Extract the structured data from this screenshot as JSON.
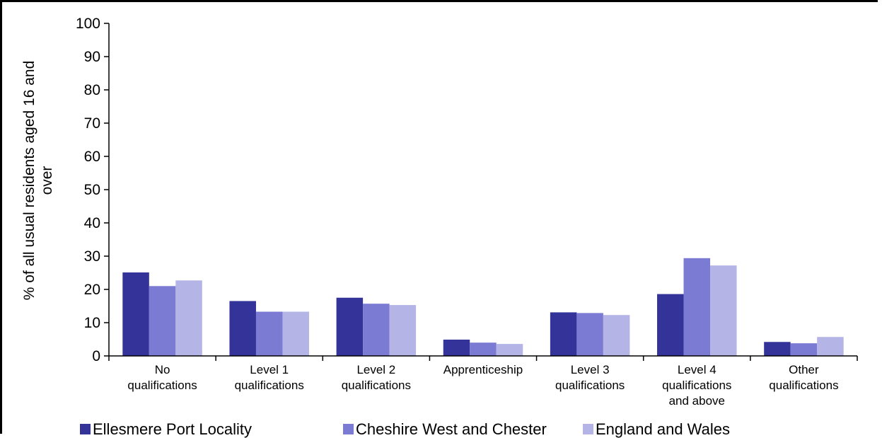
{
  "chart_data": {
    "type": "bar",
    "ylabel": "% of all usual residents aged 16 and over",
    "ylabel_lines": [
      "% of all usual residents aged 16 and",
      "over"
    ],
    "ylim": [
      0,
      100
    ],
    "yticks": [
      0,
      10,
      20,
      30,
      40,
      50,
      60,
      70,
      80,
      90,
      100
    ],
    "grid": false,
    "legend_position": "bottom",
    "categories": [
      [
        "No",
        "qualifications"
      ],
      [
        "Level 1",
        "qualifications"
      ],
      [
        "Level 2",
        "qualifications"
      ],
      [
        "Apprenticeship"
      ],
      [
        "Level 3",
        "qualifications"
      ],
      [
        "Level 4",
        "qualifications",
        "and above"
      ],
      [
        "Other",
        "qualifications"
      ]
    ],
    "series": [
      {
        "name": "Ellesmere Port Locality",
        "color": "#333399",
        "values": [
          25.1,
          16.5,
          17.5,
          4.9,
          13.1,
          18.6,
          4.2
        ]
      },
      {
        "name": "Cheshire West and Chester",
        "color": "#7b7bd4",
        "values": [
          21.0,
          13.3,
          15.7,
          4.0,
          12.9,
          29.4,
          3.8
        ]
      },
      {
        "name": "England and Wales",
        "color": "#b4b4e6",
        "values": [
          22.7,
          13.3,
          15.3,
          3.6,
          12.3,
          27.2,
          5.7
        ]
      }
    ]
  }
}
